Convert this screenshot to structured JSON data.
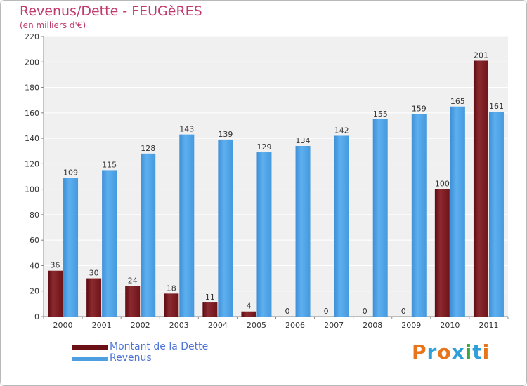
{
  "title": "Revenus/Dette - FEUGèRES",
  "subtitle": "(en milliers d'€)",
  "colors": {
    "dette": "#7a1a1f",
    "revenus": "#4e9fe1"
  },
  "legend": [
    {
      "label": "Montant de la Dette",
      "color": "#6b1116"
    },
    {
      "label": "Revenus",
      "color": "#4e9fe1"
    }
  ],
  "logo": {
    "text": "Proxiti",
    "colors": [
      "#e8751a",
      "#2f9fd8",
      "#e8751a",
      "#2f9fd8",
      "#3aa83a",
      "#2f9fd8",
      "#e8751a"
    ]
  },
  "chart_data": {
    "type": "bar",
    "title": "Revenus/Dette - FEUGèRES",
    "subtitle": "(en milliers d'€)",
    "categories": [
      "2000",
      "2001",
      "2002",
      "2003",
      "2004",
      "2005",
      "2006",
      "2007",
      "2008",
      "2009",
      "2010",
      "2011"
    ],
    "series": [
      {
        "name": "Montant de la Dette",
        "values": [
          36,
          30,
          24,
          18,
          11,
          4,
          0,
          0,
          0,
          0,
          100,
          201
        ]
      },
      {
        "name": "Revenus",
        "values": [
          109,
          115,
          128,
          143,
          139,
          129,
          134,
          142,
          155,
          159,
          165,
          161
        ]
      }
    ],
    "ylim": [
      0,
      220
    ],
    "yticks": [
      0,
      20,
      40,
      60,
      80,
      100,
      120,
      140,
      160,
      180,
      200,
      220
    ],
    "grid": true,
    "legend_position": "bottom-left"
  }
}
